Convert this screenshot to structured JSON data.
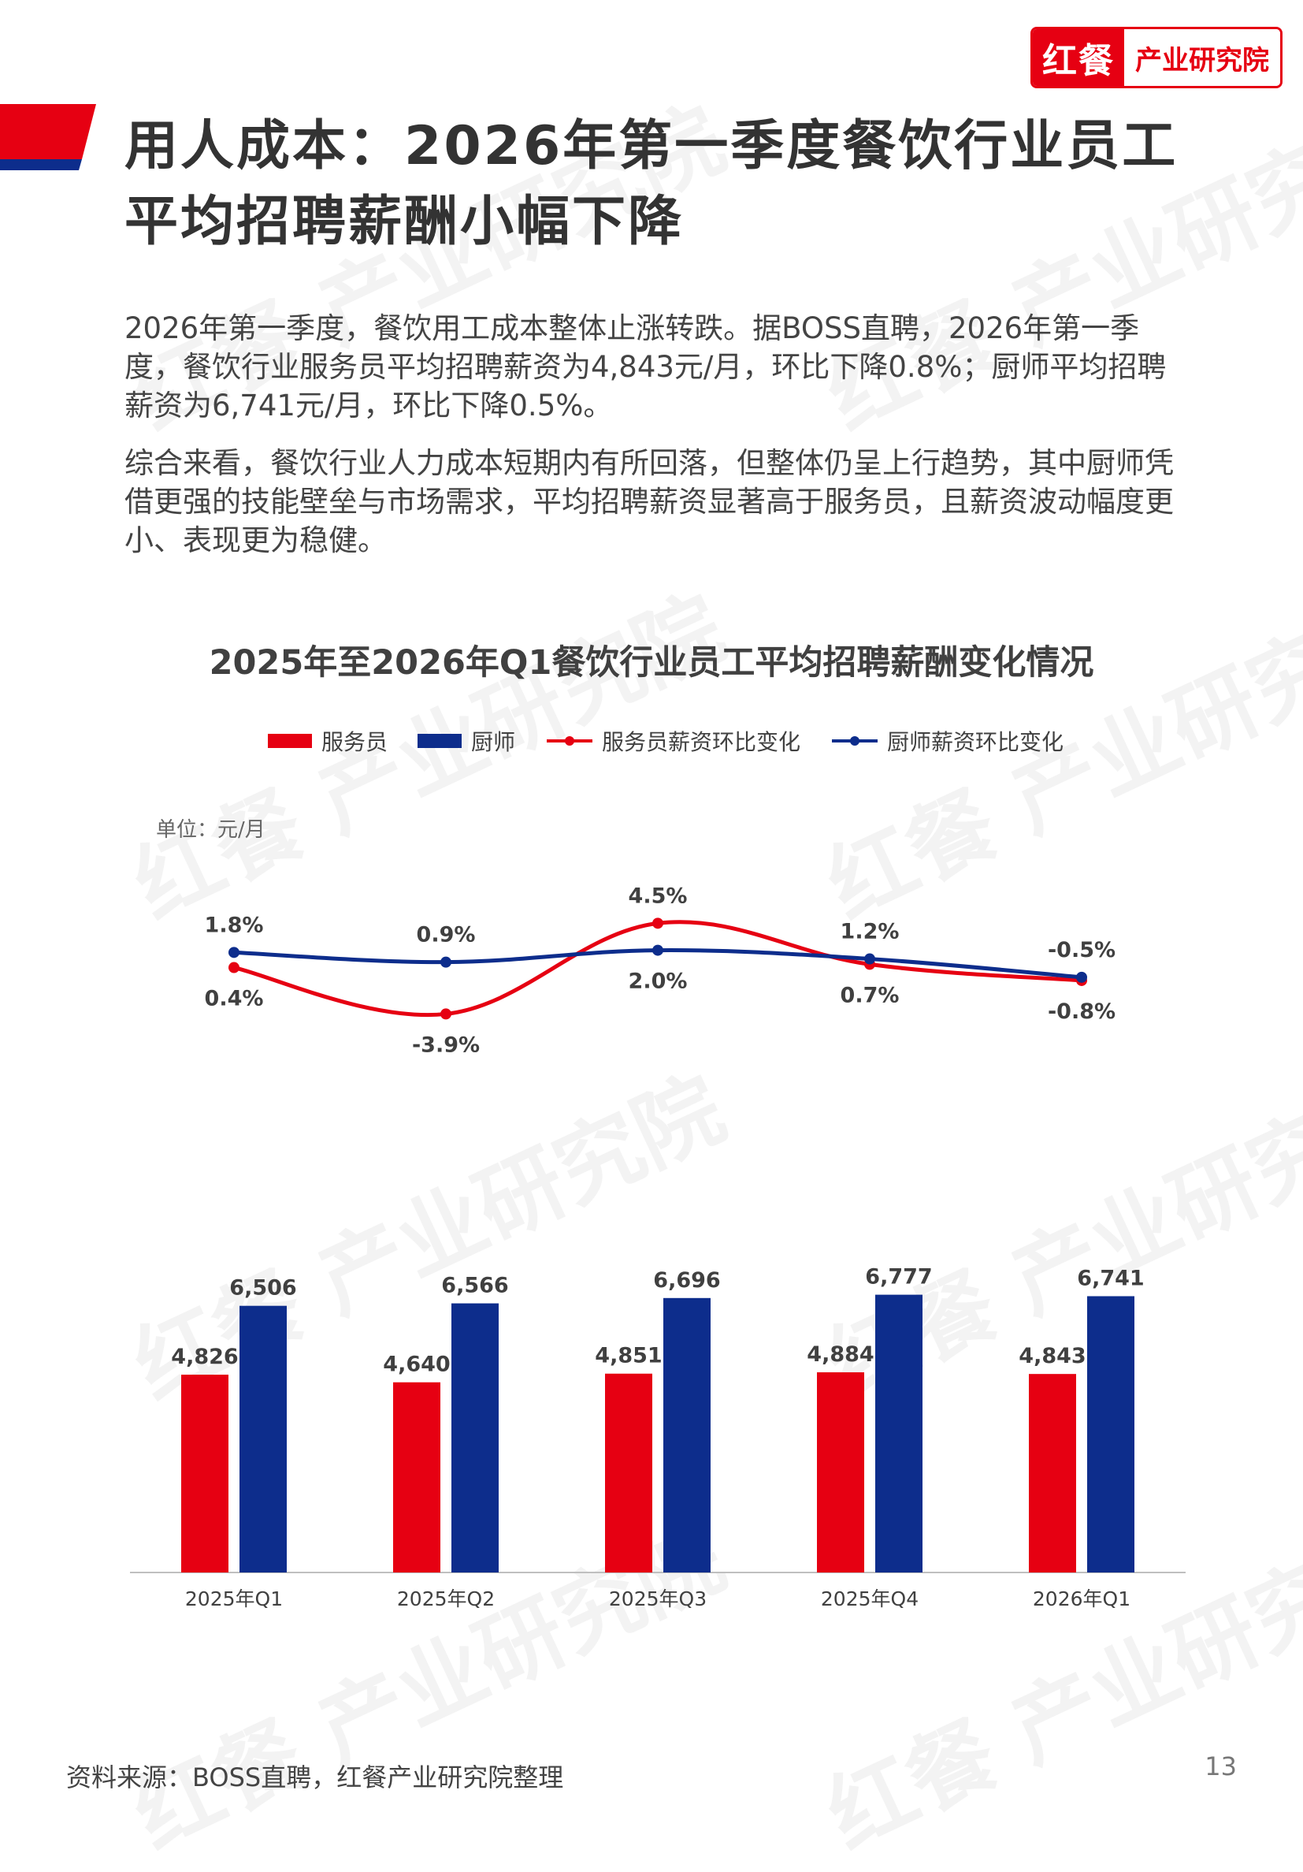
{
  "brand": {
    "logo_main": "红餐",
    "logo_sub": "产业研究院",
    "watermark": "红餐 产业研究院"
  },
  "header": {
    "title": "用人成本：2026年第一季度餐饮行业员工平均招聘薪酬小幅下降"
  },
  "body": {
    "paragraph1": "2026年第一季度，餐饮用工成本整体止涨转跌。据BOSS直聘，2026年第一季度，餐饮行业服务员平均招聘薪资为4,843元/月，环比下降0.8%；厨师平均招聘薪资为6,741元/月，环比下降0.5%。",
    "paragraph2": "综合来看，餐饮行业人力成本短期内有所回落，但整体仍呈上行趋势，其中厨师凭借更强的技能壁垒与市场需求，平均招聘薪资显著高于服务员，且薪资波动幅度更小、表现更为稳健。"
  },
  "chart_data": {
    "type": "bar",
    "title": "2025年至2026年Q1餐饮行业员工平均招聘薪酬变化情况",
    "unit": "单位：元/月",
    "categories": [
      "2025年Q1",
      "2025年Q2",
      "2025年Q3",
      "2025年Q4",
      "2026年Q1"
    ],
    "series": [
      {
        "name": "服务员",
        "kind": "bar",
        "color": "#e60012",
        "values": [
          4826,
          4640,
          4851,
          4884,
          4843
        ],
        "labels": [
          "4,826",
          "4,640",
          "4,851",
          "4,884",
          "4,843"
        ]
      },
      {
        "name": "厨师",
        "kind": "bar",
        "color": "#0d2d8c",
        "values": [
          6506,
          6566,
          6696,
          6777,
          6741
        ],
        "labels": [
          "6,506",
          "6,566",
          "6,696",
          "6,777",
          "6,741"
        ]
      },
      {
        "name": "服务员薪资环比变化",
        "kind": "line",
        "color": "#e60012",
        "values": [
          0.4,
          -3.9,
          4.5,
          0.7,
          -0.8
        ],
        "labels": [
          "0.4%",
          "-3.9%",
          "4.5%",
          "0.7%",
          "-0.8%"
        ]
      },
      {
        "name": "厨师薪资环比变化",
        "kind": "line",
        "color": "#0d2d8c",
        "values": [
          1.8,
          0.9,
          2.0,
          1.2,
          -0.5
        ],
        "labels": [
          "1.8%",
          "0.9%",
          "2.0%",
          "1.2%",
          "-0.5%"
        ]
      }
    ],
    "legend_position": "top",
    "grid": false
  },
  "footer": {
    "source": "资料来源：BOSS直聘，红餐产业研究院整理",
    "page": "13"
  }
}
